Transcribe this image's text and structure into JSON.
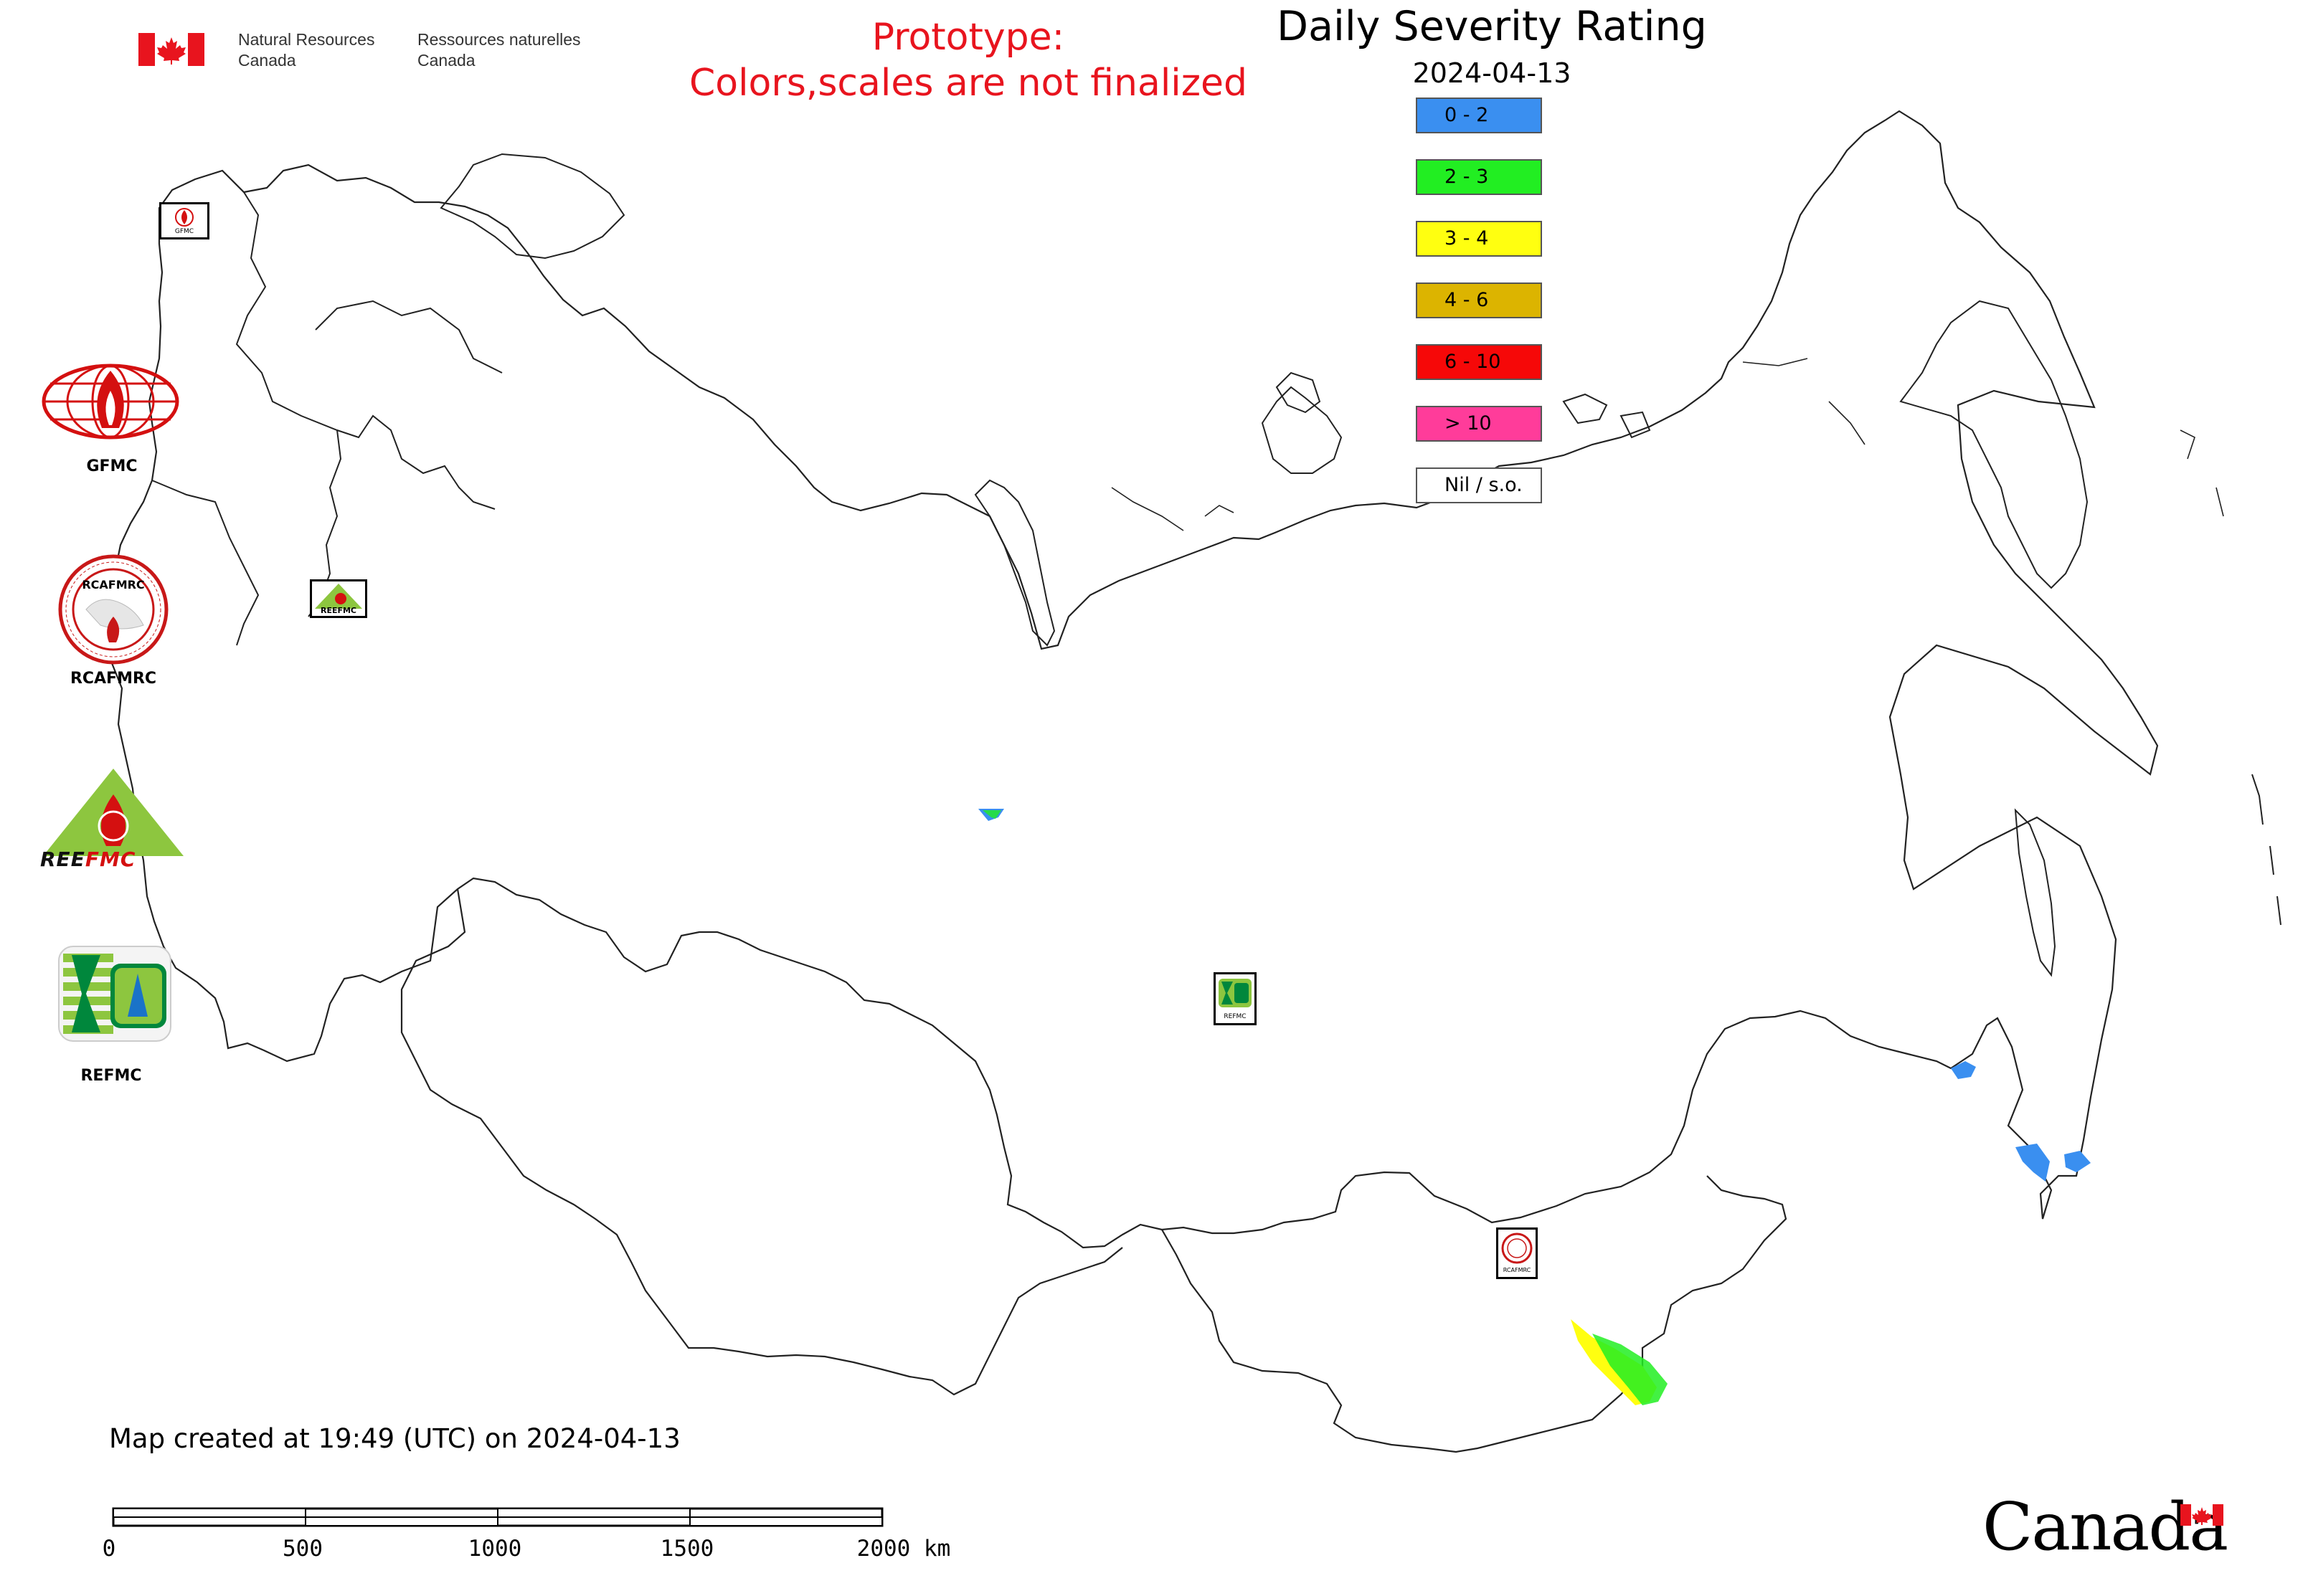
{
  "header": {
    "agency_en_line1": "Natural Resources",
    "agency_en_line2": "Canada",
    "agency_fr_line1": "Ressources naturelles",
    "agency_fr_line2": "Canada",
    "prototype_line1": "Prototype:",
    "prototype_line2": "Colors,scales are not finalized",
    "title": "Daily Severity Rating",
    "date": "2024-04-13"
  },
  "legend": [
    {
      "label": "0 - 2",
      "color": "#3a8ff0"
    },
    {
      "label": "2 - 3",
      "color": "#22ee22"
    },
    {
      "label": "3 - 4",
      "color": "#ffff10"
    },
    {
      "label": "4 - 6",
      "color": "#dcb400"
    },
    {
      "label": "6 - 10",
      "color": "#f60808"
    },
    {
      "label": "> 10",
      "color": "#ff3c9a"
    },
    {
      "label": "Nil / s.o.",
      "color": "#ffffff"
    }
  ],
  "logos": {
    "gfmc": "GFMC",
    "rcafmrc": "RCAFMRC",
    "reefmc": "REEFMC",
    "refmc": "REFMC",
    "small_gfmc": "GFMC",
    "small_reefmc": "REEFMC",
    "small_refmc": "REFMC",
    "small_rcafmrc": "RCAFMRC",
    "rcafmrc_badge": "RCAFMRC"
  },
  "footer": {
    "created_text": "Map created at 19:49 (UTC) on 2024-04-13",
    "scale_labels": [
      "0",
      "500",
      "1000",
      "1500",
      "2000 km"
    ],
    "wordmark": "Canada"
  }
}
